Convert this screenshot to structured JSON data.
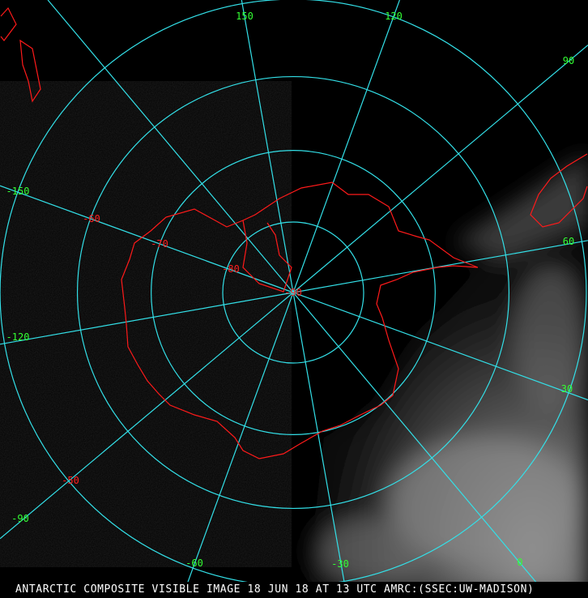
{
  "caption": "ANTARCTIC COMPOSITE VISIBLE IMAGE 18 JUN 18 AT 13 UTC AMRC:(SSEC:UW-MADISON)",
  "projection": "south-polar-stereographic",
  "colors": {
    "graticule": "#33e0e8",
    "longitude_labels": "#33ff33",
    "latitude_labels": "#ff2020",
    "coastline": "#ff1a1a",
    "background": "#000000"
  },
  "longitudes": [
    {
      "lon": 150,
      "label": "150"
    },
    {
      "lon": 120,
      "label": "120"
    },
    {
      "lon": 90,
      "label": "90"
    },
    {
      "lon": 60,
      "label": "60"
    },
    {
      "lon": 30,
      "label": "30"
    },
    {
      "lon": 0,
      "label": "0"
    },
    {
      "lon": -30,
      "label": "-30"
    },
    {
      "lon": -60,
      "label": "-60"
    },
    {
      "lon": -90,
      "label": "-90"
    },
    {
      "lon": -120,
      "label": "-120"
    },
    {
      "lon": -150,
      "label": "-150"
    },
    {
      "lon": 180,
      "label": ""
    }
  ],
  "latitudes": [
    {
      "lat": -90,
      "label": "-90"
    },
    {
      "lat": -80,
      "label": "-80"
    },
    {
      "lat": -70,
      "label": "-70"
    },
    {
      "lat": -60,
      "label": "-60"
    },
    {
      "lat": -50,
      "label": "-50"
    }
  ]
}
